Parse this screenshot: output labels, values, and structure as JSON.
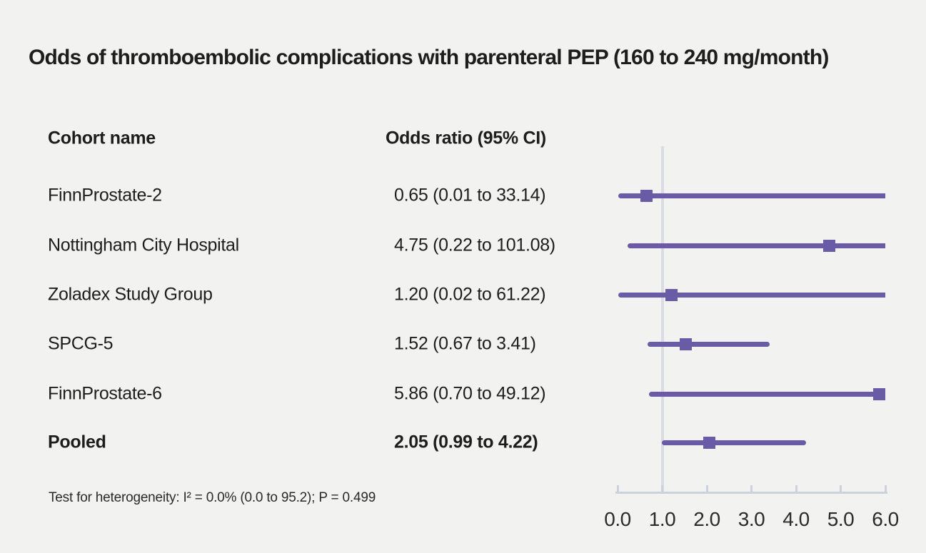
{
  "title": "Odds of thromboembolic complications with parenteral PEP (160 to 240 mg/month)",
  "table": {
    "cohort_header": "Cohort name",
    "or_header": "Odds ratio (95% CI)"
  },
  "footnote": "Test for heterogeneity: I² = 0.0% (0.0 to 95.2); P = 0.499",
  "colors": {
    "background": "#f2f2f1",
    "marker_purple": "#6a5ba6",
    "reference_line": "#d9dce3",
    "axis": "#ccd2da",
    "text": "#1d1d1b"
  },
  "chart_data": {
    "type": "forest",
    "title": "Odds of thromboembolic complications with parenteral PEP (160 to 240 mg/month)",
    "xlabel": "Odds ratio",
    "xlim": [
      0,
      6
    ],
    "x_ticks": [
      0,
      1,
      2,
      3,
      4,
      5,
      6
    ],
    "x_tick_labels": [
      "0.0",
      "1.0",
      "2.0",
      "3.0",
      "4.0",
      "5.0",
      "6.0"
    ],
    "reference_line_x": 1.0,
    "legend": "none",
    "grid": "off",
    "rows": [
      {
        "name": "FinnProstate-2",
        "label": "0.65 (0.01 to 33.14)",
        "estimate": 0.65,
        "ci_low": 0.01,
        "ci_high": 33.14,
        "pooled": false
      },
      {
        "name": "Nottingham City Hospital",
        "label": "4.75 (0.22 to 101.08)",
        "estimate": 4.75,
        "ci_low": 0.22,
        "ci_high": 101.08,
        "pooled": false
      },
      {
        "name": "Zoladex Study Group",
        "label": "1.20 (0.02 to 61.22)",
        "estimate": 1.2,
        "ci_low": 0.02,
        "ci_high": 61.22,
        "pooled": false
      },
      {
        "name": "SPCG-5",
        "label": "1.52 (0.67 to 3.41)",
        "estimate": 1.52,
        "ci_low": 0.67,
        "ci_high": 3.41,
        "pooled": false
      },
      {
        "name": "FinnProstate-6",
        "label": "5.86 (0.70 to 49.12)",
        "estimate": 5.86,
        "ci_low": 0.7,
        "ci_high": 49.12,
        "pooled": false
      },
      {
        "name": "Pooled",
        "label": "2.05 (0.99 to 4.22)",
        "estimate": 2.05,
        "ci_low": 0.99,
        "ci_high": 4.22,
        "pooled": true
      }
    ]
  }
}
